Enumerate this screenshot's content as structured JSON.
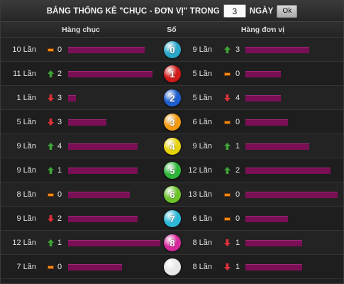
{
  "title": {
    "text": "BẢNG THỐNG KÊ \"CHỤC - ĐƠN VỊ\" TRONG",
    "days_value": "3",
    "days_label": "NGÀY",
    "ok_label": "Ok"
  },
  "header": {
    "left": "Hàng chục",
    "mid": "Số",
    "right": "Hàng đơn vị"
  },
  "colors": {
    "bar": "#7a0f55",
    "up": "#3fa536",
    "down": "#e0303a",
    "same": "#f08a1a"
  },
  "rows": [
    {
      "digit": "0",
      "ball_color": "#2aa7c9",
      "tens": {
        "count_label": "10 Lần",
        "count": 10,
        "trend": "same",
        "trend_value": "0"
      },
      "units": {
        "count_label": "9 Lần",
        "count": 9,
        "trend": "up",
        "trend_value": "3"
      }
    },
    {
      "digit": "1",
      "ball_color": "#d21a1a",
      "tens": {
        "count_label": "11 Lần",
        "count": 11,
        "trend": "up",
        "trend_value": "2"
      },
      "units": {
        "count_label": "5 Lần",
        "count": 5,
        "trend": "same",
        "trend_value": "0"
      }
    },
    {
      "digit": "2",
      "ball_color": "#1f5fd0",
      "tens": {
        "count_label": "1 Lần",
        "count": 1,
        "trend": "down",
        "trend_value": "3"
      },
      "units": {
        "count_label": "5 Lần",
        "count": 5,
        "trend": "down",
        "trend_value": "4"
      }
    },
    {
      "digit": "3",
      "ball_color": "#f29a12",
      "tens": {
        "count_label": "5 Lần",
        "count": 5,
        "trend": "down",
        "trend_value": "3"
      },
      "units": {
        "count_label": "6 Lần",
        "count": 6,
        "trend": "same",
        "trend_value": "0"
      }
    },
    {
      "digit": "4",
      "ball_color": "#e8d40e",
      "tens": {
        "count_label": "9 Lần",
        "count": 9,
        "trend": "up",
        "trend_value": "4"
      },
      "units": {
        "count_label": "9 Lần",
        "count": 9,
        "trend": "up",
        "trend_value": "1"
      }
    },
    {
      "digit": "5",
      "ball_color": "#2fb73a",
      "tens": {
        "count_label": "9 Lần",
        "count": 9,
        "trend": "up",
        "trend_value": "1"
      },
      "units": {
        "count_label": "12 Lần",
        "count": 12,
        "trend": "up",
        "trend_value": "2"
      }
    },
    {
      "digit": "6",
      "ball_color": "#6cc42a",
      "tens": {
        "count_label": "8 Lần",
        "count": 8,
        "trend": "same",
        "trend_value": "0"
      },
      "units": {
        "count_label": "13 Lần",
        "count": 13,
        "trend": "same",
        "trend_value": "0"
      }
    },
    {
      "digit": "7",
      "ball_color": "#2db8d8",
      "tens": {
        "count_label": "9 Lần",
        "count": 9,
        "trend": "down",
        "trend_value": "2"
      },
      "units": {
        "count_label": "6 Lần",
        "count": 6,
        "trend": "same",
        "trend_value": "0"
      }
    },
    {
      "digit": "8",
      "ball_color": "#d62a9c",
      "tens": {
        "count_label": "12 Lần",
        "count": 12,
        "trend": "up",
        "trend_value": "1"
      },
      "units": {
        "count_label": "8 Lần",
        "count": 8,
        "trend": "down",
        "trend_value": "1"
      }
    },
    {
      "digit": "",
      "ball_color": "#e8e8e8",
      "tens": {
        "count_label": "7 Lần",
        "count": 7,
        "trend": "same",
        "trend_value": "0"
      },
      "units": {
        "count_label": "8 Lần",
        "count": 8,
        "trend": "down",
        "trend_value": "1"
      }
    }
  ]
}
